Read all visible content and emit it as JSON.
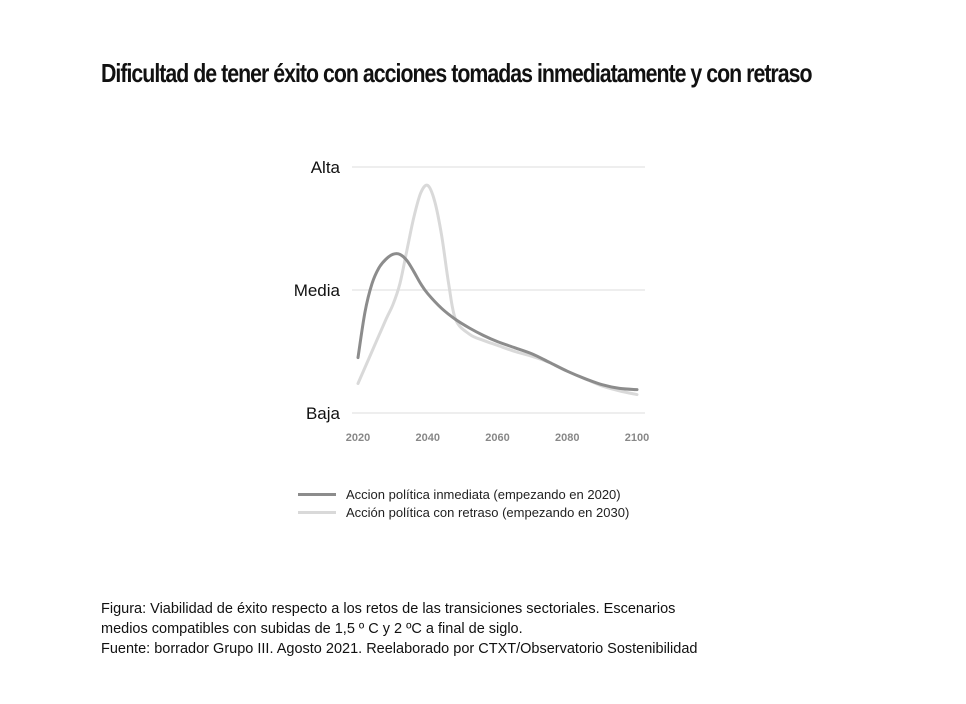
{
  "title": "Dificultad de tener éxito con acciones tomadas inmediatamente y con retraso",
  "colors": {
    "immediate": "#8c8c8c",
    "delayed": "#d9d9d9",
    "grid": "#e3e3e3"
  },
  "chart_data": {
    "type": "line",
    "title": "Dificultad de tener éxito con acciones tomadas inmediatamente y con retraso",
    "xlabel": "",
    "ylabel": "",
    "x_ticks": [
      "2020",
      "2040",
      "2060",
      "2080",
      "2100"
    ],
    "xlim": [
      2020,
      2100
    ],
    "y_levels": [
      "Baja",
      "Media",
      "Alta"
    ],
    "ylim": [
      0,
      2
    ],
    "grid": true,
    "legend_position": "bottom",
    "series": [
      {
        "name": "Accion política inmediata (empezando en 2020)",
        "x": [
          2020,
          2022,
          2024,
          2026,
          2028,
          2030,
          2032,
          2034,
          2036,
          2038,
          2040,
          2044,
          2048,
          2052,
          2056,
          2060,
          2065,
          2070,
          2075,
          2080,
          2085,
          2090,
          2095,
          2100
        ],
        "y": [
          0.45,
          0.82,
          1.05,
          1.18,
          1.25,
          1.29,
          1.29,
          1.24,
          1.15,
          1.05,
          0.97,
          0.85,
          0.76,
          0.69,
          0.63,
          0.58,
          0.53,
          0.48,
          0.41,
          0.34,
          0.28,
          0.23,
          0.2,
          0.19
        ]
      },
      {
        "name": "Acción política con retraso (empezando en 2030)",
        "x": [
          2020,
          2024,
          2028,
          2030,
          2032,
          2034,
          2036,
          2038,
          2040,
          2042,
          2044,
          2046,
          2048,
          2052,
          2056,
          2060,
          2065,
          2070,
          2075,
          2080,
          2085,
          2090,
          2095,
          2100
        ],
        "y": [
          0.24,
          0.5,
          0.76,
          0.88,
          1.05,
          1.32,
          1.59,
          1.79,
          1.85,
          1.72,
          1.44,
          1.05,
          0.76,
          0.64,
          0.59,
          0.55,
          0.5,
          0.46,
          0.41,
          0.34,
          0.28,
          0.22,
          0.18,
          0.15
        ]
      }
    ]
  },
  "caption": [
    "Figura: Viabilidad de éxito respecto a los retos de las transiciones sectoriales. Escenarios",
    "medios compatibles con subidas de 1,5 º C y 2 ºC a final de siglo.",
    "Fuente: borrador Grupo III. Agosto 2021. Reelaborado por CTXT/Observatorio Sostenibilidad"
  ]
}
